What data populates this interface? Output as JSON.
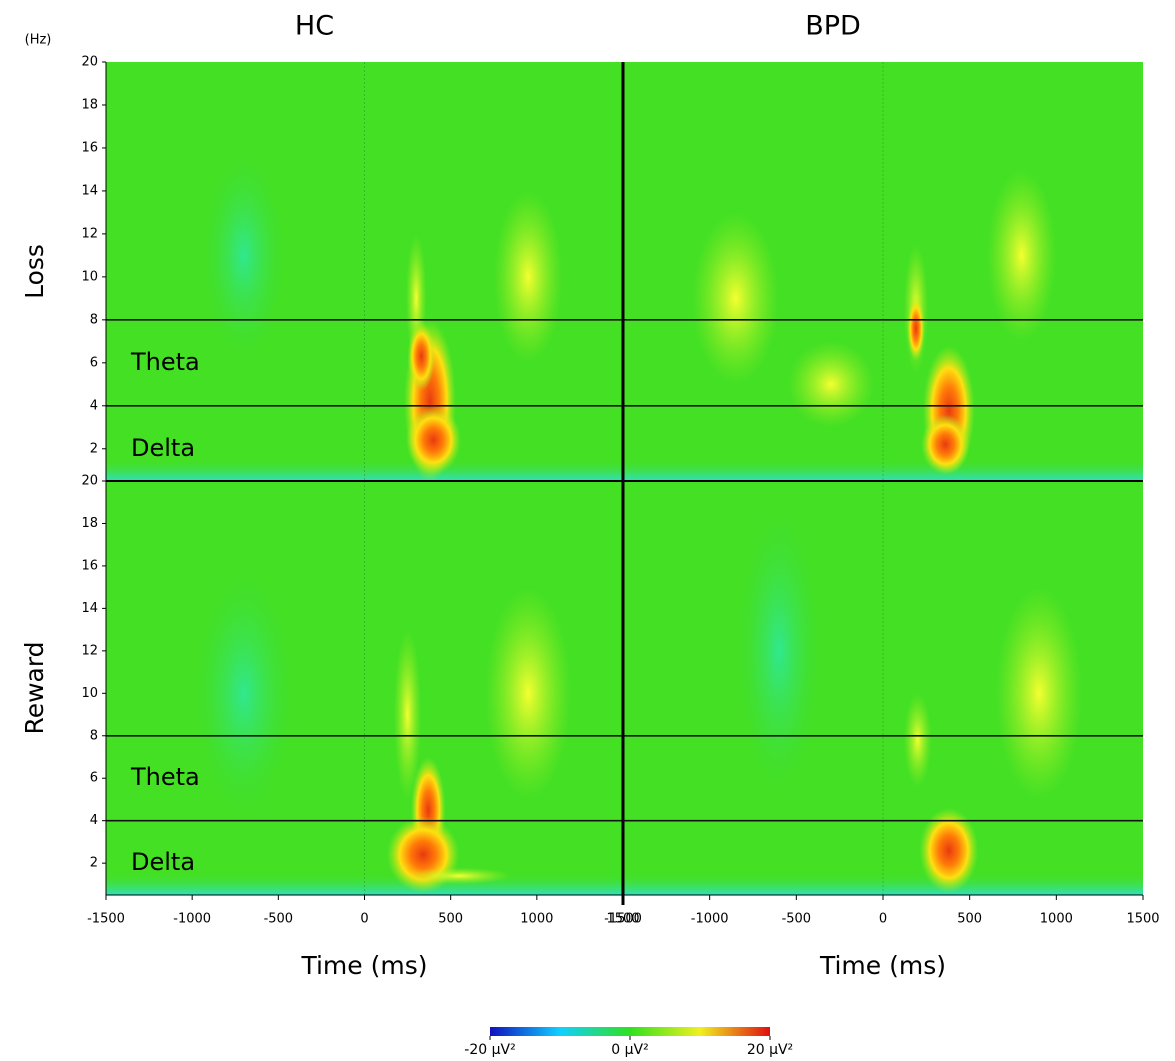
{
  "chart_data": {
    "type": "heatmap",
    "column_titles": [
      "HC",
      "BPD"
    ],
    "row_titles": [
      "Loss",
      "Reward"
    ],
    "y_unit_label": "(Hz)",
    "x_label": "Time (ms)",
    "xlim": [
      -1500,
      1500
    ],
    "xticks": [
      -1500,
      -1000,
      -500,
      0,
      500,
      1000,
      1500
    ],
    "ylim": [
      0.5,
      20
    ],
    "yticks": [
      2,
      4,
      6,
      8,
      10,
      12,
      14,
      16,
      18,
      20
    ],
    "band_lines": [
      8,
      4
    ],
    "band_labels": [
      "Theta",
      "Delta"
    ],
    "colorbar": {
      "clim": [
        -20,
        20
      ],
      "colors": [
        "#1010c0",
        "#10d0ff",
        "#30e020",
        "#f0f020",
        "#e01010"
      ],
      "ticks": [
        {
          "value": -20,
          "label": "-20 µV²"
        },
        {
          "value": 0,
          "label": "0 µV²"
        },
        {
          "value": 20,
          "label": "20 µV²"
        }
      ]
    }
  }
}
